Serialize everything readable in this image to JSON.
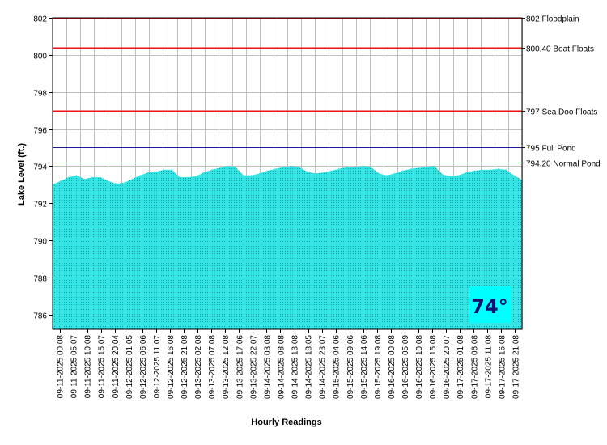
{
  "chart_data": {
    "type": "area",
    "title": "",
    "xlabel": "Hourly Readings",
    "ylabel": "Lake Level (ft.)",
    "ylim": [
      785.2,
      802
    ],
    "y_ticks": [
      786,
      788,
      790,
      792,
      794,
      796,
      798,
      800,
      802
    ],
    "grid": true,
    "x_tick_labels": [
      "09-11-2025 00:08",
      "09-11-2025 05:07",
      "09-11-2025 10:08",
      "09-11-2025 15:07",
      "09-11-2025 20:04",
      "09-12-2025 01:05",
      "09-12-2025 06:06",
      "09-12-2025 11:07",
      "09-12-2025 16:08",
      "09-12-2025 21:08",
      "09-13-2025 02:08",
      "09-13-2025 07:08",
      "09-13-2025 12:08",
      "09-13-2025 17:06",
      "09-13-2025 22:07",
      "09-14-2025 03:08",
      "09-14-2025 08:08",
      "09-14-2025 13:08",
      "09-14-2025 18:05",
      "09-14-2025 23:07",
      "09-15-2025 04:06",
      "09-15-2025 09:06",
      "09-15-2025 14:06",
      "09-15-2025 19:08",
      "09-16-2025 00:08",
      "09-16-2025 05:09",
      "09-16-2025 10:08",
      "09-16-2025 15:08",
      "09-16-2025 20:07",
      "09-17-2025 01:08",
      "09-17-2025 06:08",
      "09-17-2025 11:08",
      "09-17-2025 16:08",
      "09-17-2025 21:08"
    ],
    "series": [
      {
        "values": [
          793.0,
          793.2,
          793.4,
          793.5,
          793.3,
          793.4,
          793.4,
          793.2,
          793.05,
          793.1,
          793.3,
          793.5,
          793.65,
          793.7,
          793.8,
          793.8,
          793.4,
          793.4,
          793.45,
          793.65,
          793.8,
          793.9,
          794.0,
          793.95,
          793.5,
          793.5,
          793.6,
          793.75,
          793.85,
          793.95,
          794.0,
          793.95,
          793.7,
          793.6,
          793.65,
          793.75,
          793.85,
          793.95,
          793.95,
          794.0,
          793.95,
          793.6,
          793.5,
          793.6,
          793.75,
          793.85,
          793.9,
          793.95,
          794.0,
          793.55,
          793.45,
          793.5,
          793.65,
          793.75,
          793.8,
          793.8,
          793.85,
          793.8,
          793.5,
          793.25
        ],
        "fill_color": "#33e5e5"
      }
    ],
    "reference_lines": [
      {
        "value": 802,
        "label": "802 Floodplain",
        "color": "#ee1111"
      },
      {
        "value": 800.4,
        "label": "800.40 Boat Floats",
        "color": "#ee1111"
      },
      {
        "value": 797,
        "label": "797 Sea Doo Floats",
        "color": "#ee1111"
      },
      {
        "value": 795,
        "label": "795 Full Pond",
        "color": "#1a1aa0"
      },
      {
        "value": 794.2,
        "label": "794.20 Normal Pond",
        "color": "#33aa33"
      }
    ],
    "temperature_badge": "74°",
    "badge_color": "#00ffff"
  }
}
